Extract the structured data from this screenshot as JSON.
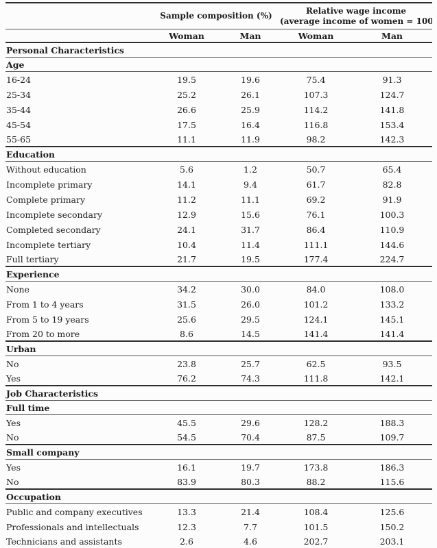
{
  "header": {
    "group1": "Sample composition (%)",
    "group2_line1": "Relative wage income",
    "group2_line2": "(average income of women = 100)",
    "columns": [
      "Woman",
      "Man",
      "Woman",
      "Man"
    ]
  },
  "rows": [
    {
      "kind": "section",
      "label": "Personal Characteristics"
    },
    {
      "kind": "section",
      "label": "Age"
    },
    {
      "kind": "data",
      "label": "16-24",
      "values": [
        "19.5",
        "19.6",
        "75.4",
        "91.3"
      ]
    },
    {
      "kind": "data",
      "label": "25-34",
      "values": [
        "25.2",
        "26.1",
        "107.3",
        "124.7"
      ]
    },
    {
      "kind": "data",
      "label": "35-44",
      "values": [
        "26.6",
        "25.9",
        "114.2",
        "141.8"
      ]
    },
    {
      "kind": "data",
      "label": "45-54",
      "values": [
        "17.5",
        "16.4",
        "116.8",
        "153.4"
      ]
    },
    {
      "kind": "data",
      "label": "55-65",
      "values": [
        "11.1",
        "11.9",
        "98.2",
        "142.3"
      ],
      "section_end": true
    },
    {
      "kind": "section",
      "label": "Education"
    },
    {
      "kind": "data",
      "label": "Without education",
      "values": [
        "5.6",
        "1.2",
        "50.7",
        "65.4"
      ]
    },
    {
      "kind": "data",
      "label": "Incomplete primary",
      "values": [
        "14.1",
        "9.4",
        "61.7",
        "82.8"
      ]
    },
    {
      "kind": "data",
      "label": "Complete primary",
      "values": [
        "11.2",
        "11.1",
        "69.2",
        "91.9"
      ]
    },
    {
      "kind": "data",
      "label": "Incomplete secondary",
      "values": [
        "12.9",
        "15.6",
        "76.1",
        "100.3"
      ]
    },
    {
      "kind": "data",
      "label": "Completed secondary",
      "values": [
        "24.1",
        "31.7",
        "86.4",
        "110.9"
      ]
    },
    {
      "kind": "data",
      "label": "Incomplete tertiary",
      "values": [
        "10.4",
        "11.4",
        "111.1",
        "144.6"
      ]
    },
    {
      "kind": "data",
      "label": "Full tertiary",
      "values": [
        "21.7",
        "19.5",
        "177.4",
        "224.7"
      ],
      "section_end": true
    },
    {
      "kind": "section",
      "label": "Experience"
    },
    {
      "kind": "data",
      "label": "None",
      "values": [
        "34.2",
        "30.0",
        "84.0",
        "108.0"
      ]
    },
    {
      "kind": "data",
      "label": "From 1 to 4 years",
      "values": [
        "31.5",
        "26.0",
        "101.2",
        "133.2"
      ]
    },
    {
      "kind": "data",
      "label": "From 5 to 19 years",
      "values": [
        "25.6",
        "29.5",
        "124.1",
        "145.1"
      ]
    },
    {
      "kind": "data",
      "label": "From 20 to more",
      "values": [
        "8.6",
        "14.5",
        "141.4",
        "141.4"
      ],
      "section_end": true
    },
    {
      "kind": "section",
      "label": "Urban"
    },
    {
      "kind": "data",
      "label": "No",
      "values": [
        "23.8",
        "25.7",
        "62.5",
        "93.5"
      ]
    },
    {
      "kind": "data",
      "label": "Yes",
      "values": [
        "76.2",
        "74.3",
        "111.8",
        "142.1"
      ],
      "section_end": true
    },
    {
      "kind": "section",
      "label": "Job Characteristics"
    },
    {
      "kind": "section",
      "label": "Full time"
    },
    {
      "kind": "data",
      "label": "Yes",
      "values": [
        "45.5",
        "29.6",
        "128.2",
        "188.3"
      ]
    },
    {
      "kind": "data",
      "label": "No",
      "values": [
        "54.5",
        "70.4",
        "87.5",
        "109.7"
      ],
      "section_end": true
    },
    {
      "kind": "section",
      "label": "Small company"
    },
    {
      "kind": "data",
      "label": "Yes",
      "values": [
        "16.1",
        "19.7",
        "173.8",
        "186.3"
      ]
    },
    {
      "kind": "data",
      "label": "No",
      "values": [
        "83.9",
        "80.3",
        "88.2",
        "115.6"
      ],
      "section_end": true
    },
    {
      "kind": "section",
      "label": "Occupation"
    },
    {
      "kind": "data",
      "label": "Public and company executives",
      "values": [
        "13.3",
        "21.4",
        "108.4",
        "125.6"
      ]
    },
    {
      "kind": "data",
      "label": "Professionals and intellectuals",
      "values": [
        "12.3",
        "7.7",
        "101.5",
        "150.2"
      ]
    },
    {
      "kind": "data",
      "label": "Technicians and assistants",
      "values": [
        "2.6",
        "4.6",
        "202.7",
        "203.1"
      ],
      "section_end": true
    }
  ],
  "colors": {
    "text": "#1e1e1e",
    "rule_heavy": "#2d2d2d",
    "rule_light": "#4f4f4f",
    "background": "#fcfcfc"
  }
}
